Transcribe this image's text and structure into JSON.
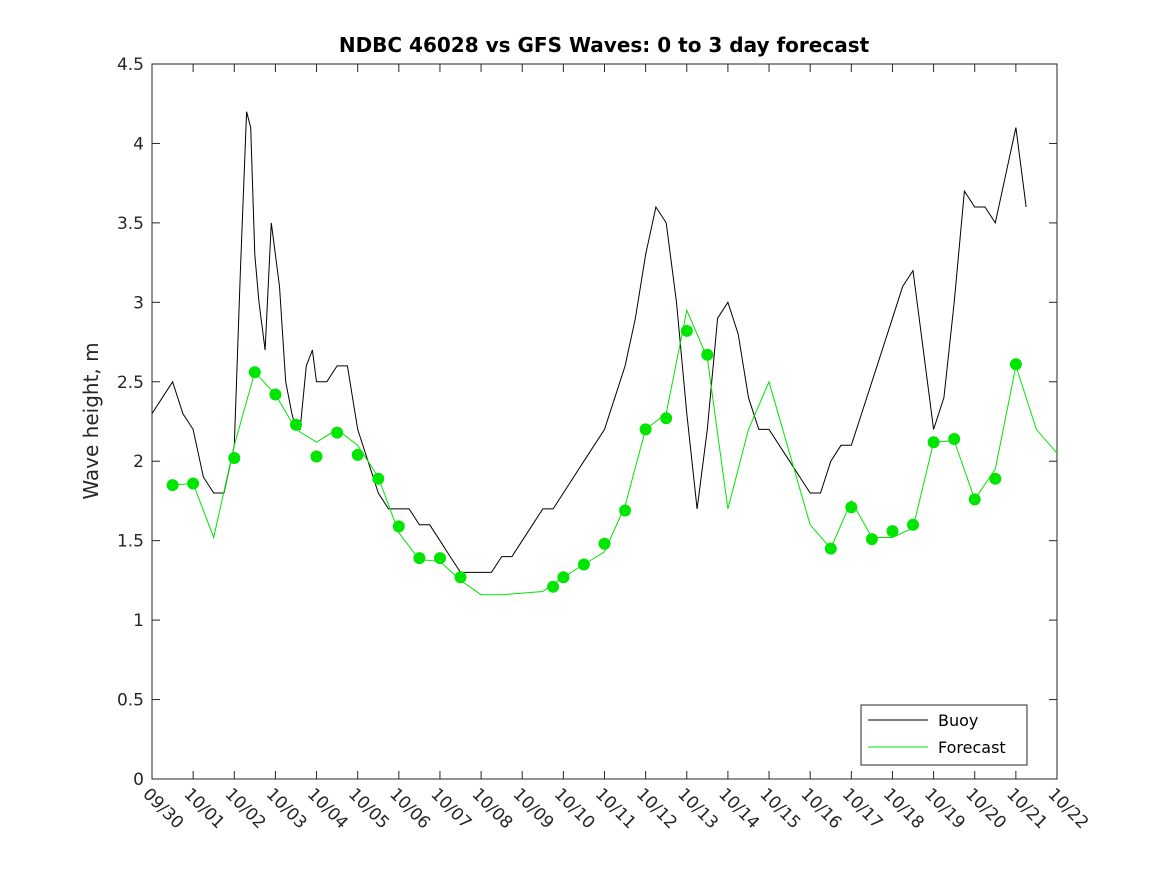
{
  "chart_data": {
    "type": "line",
    "title": "NDBC 46028 vs GFS Waves: 0 to 3 day forecast",
    "xlabel": "",
    "ylabel": "Wave height, m",
    "xlim": [
      0,
      22
    ],
    "ylim": [
      0,
      4.5
    ],
    "grid": false,
    "legend_position": "bottom-right",
    "x_tick_labels": [
      "09/30",
      "10/01",
      "10/02",
      "10/03",
      "10/04",
      "10/05",
      "10/06",
      "10/07",
      "10/08",
      "10/09",
      "10/10",
      "10/11",
      "10/12",
      "10/13",
      "10/14",
      "10/15",
      "10/16",
      "10/17",
      "10/18",
      "10/19",
      "10/20",
      "10/21",
      "10/22"
    ],
    "y_ticks": [
      0,
      0.5,
      1,
      1.5,
      2,
      2.5,
      3,
      3.5,
      4,
      4.5
    ],
    "y_tick_labels": [
      "0",
      "0.5",
      "1",
      "1.5",
      "2",
      "2.5",
      "3",
      "3.5",
      "4",
      "4.5"
    ],
    "legend": [
      {
        "name": "Buoy",
        "color": "#000000"
      },
      {
        "name": "Forecast",
        "color": "#00e600"
      }
    ],
    "series": [
      {
        "name": "Buoy",
        "color": "#000000",
        "x": [
          0.0,
          0.25,
          0.5,
          0.75,
          1.0,
          1.25,
          1.5,
          1.75,
          2.0,
          2.15,
          2.3,
          2.4,
          2.5,
          2.6,
          2.75,
          2.9,
          3.0,
          3.1,
          3.25,
          3.4,
          3.5,
          3.6,
          3.75,
          3.9,
          4.0,
          4.25,
          4.5,
          4.75,
          5.0,
          5.25,
          5.5,
          5.75,
          6.0,
          6.25,
          6.5,
          6.75,
          7.0,
          7.25,
          7.5,
          7.75,
          8.0,
          8.25,
          8.5,
          8.75,
          9.0,
          9.25,
          9.5,
          9.75,
          10.0,
          10.25,
          10.5,
          10.75,
          11.0,
          11.25,
          11.5,
          11.75,
          12.0,
          12.25,
          12.5,
          12.75,
          13.0,
          13.25,
          13.5,
          13.75,
          14.0,
          14.25,
          14.5,
          14.75,
          15.0,
          15.25,
          15.5,
          15.75,
          16.0,
          16.25,
          16.5,
          16.75,
          17.0,
          17.25,
          17.5,
          17.75,
          18.0,
          18.25,
          18.5,
          18.75,
          19.0,
          19.25,
          19.5,
          19.75,
          20.0,
          20.25,
          20.5,
          20.75,
          21.0,
          21.1,
          21.2,
          21.25
        ],
        "y": [
          2.3,
          2.4,
          2.5,
          2.3,
          2.2,
          1.9,
          1.8,
          1.8,
          2.1,
          3.2,
          4.2,
          4.1,
          3.3,
          3.0,
          2.7,
          3.5,
          3.3,
          3.1,
          2.5,
          2.3,
          2.2,
          2.2,
          2.6,
          2.7,
          2.5,
          2.5,
          2.6,
          2.6,
          2.2,
          2.0,
          1.8,
          1.7,
          1.7,
          1.7,
          1.6,
          1.6,
          1.5,
          1.4,
          1.3,
          1.3,
          1.3,
          1.3,
          1.4,
          1.4,
          1.5,
          1.6,
          1.7,
          1.7,
          1.8,
          1.9,
          2.0,
          2.1,
          2.2,
          2.4,
          2.6,
          2.9,
          3.3,
          3.6,
          3.5,
          3.0,
          2.3,
          1.7,
          2.2,
          2.9,
          3.0,
          2.8,
          2.4,
          2.2,
          2.2,
          2.1,
          2.0,
          1.9,
          1.8,
          1.8,
          2.0,
          2.1,
          2.1,
          2.3,
          2.5,
          2.7,
          2.9,
          3.1,
          3.2,
          2.7,
          2.2,
          2.4,
          3.0,
          3.7,
          3.6,
          3.6,
          3.5,
          3.8,
          4.1,
          3.9,
          3.7,
          3.6
        ]
      },
      {
        "name": "Forecast",
        "color": "#00e600",
        "x": [
          0.5,
          1.0,
          1.5,
          2.0,
          2.5,
          3.0,
          3.5,
          4.0,
          4.5,
          5.0,
          5.5,
          6.0,
          6.5,
          7.0,
          7.5,
          8.0,
          8.5,
          9.0,
          9.5,
          10.0,
          10.5,
          11.0,
          11.5,
          12.0,
          12.5,
          13.0,
          13.5,
          14.0,
          14.5,
          15.0,
          15.5,
          16.0,
          16.5,
          17.0,
          17.5,
          18.0,
          18.5,
          19.0,
          19.5,
          20.0,
          20.5,
          21.0,
          21.5,
          22.0
        ],
        "y": [
          1.85,
          1.86,
          1.52,
          2.1,
          2.56,
          2.42,
          2.2,
          2.12,
          2.2,
          2.1,
          1.9,
          1.55,
          1.38,
          1.37,
          1.25,
          1.16,
          1.16,
          1.17,
          1.18,
          1.27,
          1.35,
          1.43,
          1.72,
          2.2,
          2.3,
          2.95,
          2.65,
          1.7,
          2.2,
          2.5,
          2.05,
          1.6,
          1.45,
          1.75,
          1.52,
          1.52,
          1.58,
          2.12,
          2.13,
          1.76,
          1.95,
          2.6,
          2.2,
          2.05
        ]
      },
      {
        "name": "Forecast (day-marker points)",
        "color": "#00e600",
        "x": [
          0.5,
          1.0,
          2.0,
          2.5,
          3.0,
          3.5,
          4.0,
          4.5,
          5.0,
          5.5,
          6.0,
          6.5,
          7.0,
          7.5,
          9.75,
          10.0,
          10.5,
          11.0,
          11.5,
          12.0,
          12.5,
          13.0,
          13.5,
          16.5,
          17.0,
          17.5,
          18.0,
          18.5,
          19.0,
          19.5,
          20.0,
          20.5,
          21.0
        ],
        "y": [
          1.85,
          1.86,
          2.02,
          2.56,
          2.42,
          2.23,
          2.03,
          2.18,
          2.04,
          1.89,
          1.59,
          1.39,
          1.39,
          1.27,
          1.21,
          1.27,
          1.35,
          1.48,
          1.69,
          2.2,
          2.27,
          2.82,
          2.67,
          1.45,
          1.71,
          1.51,
          1.56,
          1.6,
          2.12,
          2.14,
          1.76,
          1.89,
          2.61
        ]
      }
    ]
  }
}
